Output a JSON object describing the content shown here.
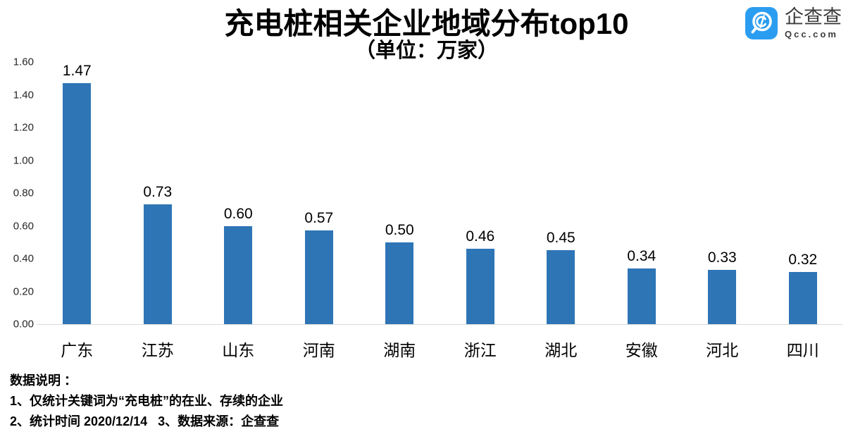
{
  "logo": {
    "name": "企查查",
    "domain": "Qcc.com",
    "color": "#2B9DF1"
  },
  "chart_data": {
    "type": "bar",
    "title": "充电桩相关企业地域分布top10",
    "subtitle": "（单位：万家）",
    "categories": [
      "广东",
      "江苏",
      "山东",
      "河南",
      "湖南",
      "浙江",
      "湖北",
      "安徽",
      "河北",
      "四川"
    ],
    "values": [
      1.47,
      0.73,
      0.6,
      0.57,
      0.5,
      0.46,
      0.45,
      0.34,
      0.33,
      0.32
    ],
    "value_labels": [
      "1.47",
      "0.73",
      "0.60",
      "0.57",
      "0.50",
      "0.46",
      "0.45",
      "0.34",
      "0.33",
      "0.32"
    ],
    "ylim": [
      0,
      1.6
    ],
    "yticks": [
      "1.60",
      "1.40",
      "1.20",
      "1.00",
      "0.80",
      "0.60",
      "0.40",
      "0.20",
      "0.00"
    ],
    "grid": false,
    "legend_position": "none",
    "bar_color": "#2E75B6",
    "axis_line_color": "#D9D9D9"
  },
  "footer": {
    "heading": "数据说明 ：",
    "note1": "1、仅统计关键词为“充电桩”的在业、存续的企业",
    "note2": "2、统计时间 2020/12/14   3、数据来源：企查查"
  }
}
